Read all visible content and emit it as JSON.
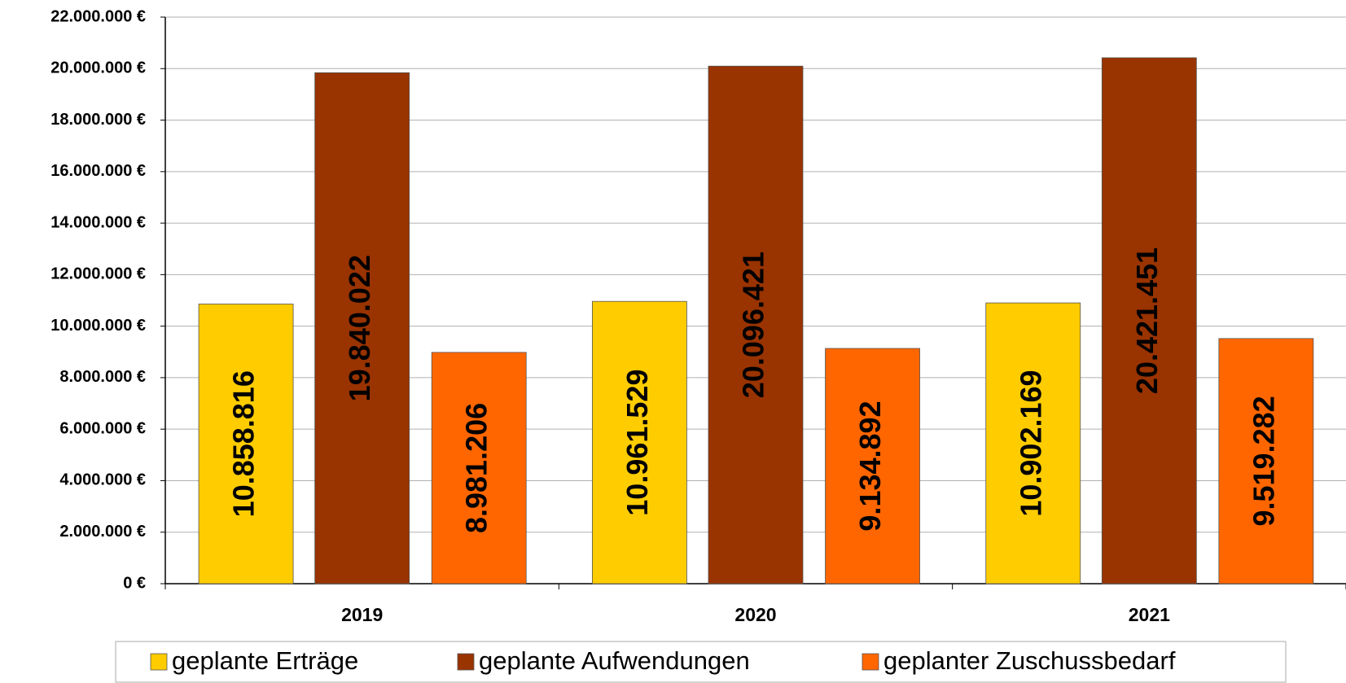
{
  "chart_data": {
    "type": "bar",
    "categories": [
      "2019",
      "2020",
      "2021"
    ],
    "series": [
      {
        "name": "geplante Erträge",
        "color": "#FFCC00",
        "values": [
          10858816,
          10961529,
          10902169
        ],
        "value_labels": [
          "10.858.816",
          "10.961.529",
          "10.902.169"
        ]
      },
      {
        "name": "geplante Aufwendungen",
        "color": "#993300",
        "values": [
          19840022,
          20096421,
          20421451
        ],
        "value_labels": [
          "19.840.022",
          "20.096.421",
          "20.421.451"
        ]
      },
      {
        "name": "geplanter Zuschussbedarf",
        "color": "#FF6600",
        "values": [
          8981206,
          9134892,
          9519282
        ],
        "value_labels": [
          "8.981.206",
          "9.134.892",
          "9.519.282"
        ]
      }
    ],
    "ylim": [
      0,
      22000000
    ],
    "yticks": [
      {
        "value": 0,
        "label": "0 €"
      },
      {
        "value": 2000000,
        "label": "2.000.000 €"
      },
      {
        "value": 4000000,
        "label": "4.000.000 €"
      },
      {
        "value": 6000000,
        "label": "6.000.000 €"
      },
      {
        "value": 8000000,
        "label": "8.000.000 €"
      },
      {
        "value": 10000000,
        "label": "10.000.000 €"
      },
      {
        "value": 12000000,
        "label": "12.000.000 €"
      },
      {
        "value": 14000000,
        "label": "14.000.000 €"
      },
      {
        "value": 16000000,
        "label": "16.000.000 €"
      },
      {
        "value": 18000000,
        "label": "18.000.000 €"
      },
      {
        "value": 20000000,
        "label": "20.000.000 €"
      },
      {
        "value": 22000000,
        "label": "22.000.000 €"
      }
    ],
    "grid": true,
    "legend": "bottom"
  }
}
